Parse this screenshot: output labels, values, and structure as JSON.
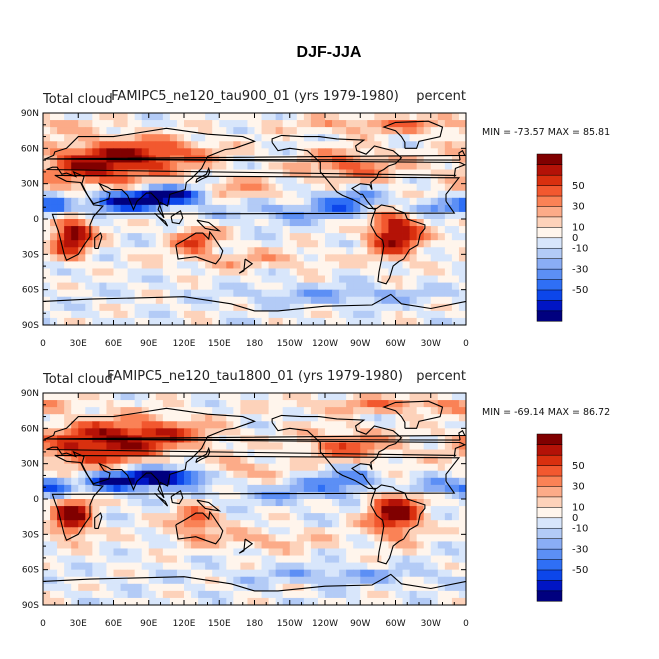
{
  "figure": {
    "title": "DJF-JJA"
  },
  "colors": {
    "levels": [
      "#00007f",
      "#0015c4",
      "#0c46ea",
      "#2f6ff5",
      "#5c8ff5",
      "#8aadf5",
      "#b3cbf6",
      "#d8e6fb",
      "#fff5ec",
      "#fdd2ba",
      "#fcab88",
      "#fa8256",
      "#f2582f",
      "#d9300f",
      "#b41207",
      "#800000"
    ],
    "coast": "#000000"
  },
  "chart_data": [
    {
      "type": "heatmap",
      "left_title": "Total cloud",
      "center_title": "FAMIPC5_ne120_tau900_01 (yrs 1979-1980)",
      "right_title": "percent",
      "min_max": "MIN = -73.57 MAX =  85.81",
      "ylim": [
        -90,
        90
      ],
      "xlim": [
        0,
        360
      ],
      "yticks": [
        "90N",
        "60N",
        "30N",
        "0",
        "30S",
        "60S",
        "90S"
      ],
      "xticks": [
        "0",
        "30E",
        "60E",
        "90E",
        "120E",
        "150E",
        "180",
        "150W",
        "120W",
        "90W",
        "60W",
        "30W",
        "0"
      ],
      "colorbar_labels": [
        "50",
        "30",
        "10",
        "0",
        "-10",
        "-30",
        "-50"
      ],
      "colorbar_levels": [
        -70,
        -60,
        -50,
        -40,
        -30,
        -20,
        -10,
        0,
        10,
        20,
        30,
        40,
        50,
        60,
        70
      ]
    },
    {
      "type": "heatmap",
      "left_title": "Total cloud",
      "center_title": "FAMIPC5_ne120_tau1800_01 (yrs 1979-1980)",
      "right_title": "percent",
      "min_max": "MIN = -69.14 MAX =  86.72",
      "ylim": [
        -90,
        90
      ],
      "xlim": [
        0,
        360
      ],
      "yticks": [
        "90N",
        "60N",
        "30N",
        "0",
        "30S",
        "60S",
        "90S"
      ],
      "xticks": [
        "0",
        "30E",
        "60E",
        "90E",
        "120E",
        "150E",
        "180",
        "150W",
        "120W",
        "90W",
        "60W",
        "30W",
        "0"
      ],
      "colorbar_labels": [
        "50",
        "30",
        "10",
        "0",
        "-10",
        "-30",
        "-50"
      ],
      "colorbar_levels": [
        -70,
        -60,
        -50,
        -40,
        -30,
        -20,
        -10,
        0,
        10,
        20,
        30,
        40,
        50,
        60,
        70
      ]
    }
  ]
}
